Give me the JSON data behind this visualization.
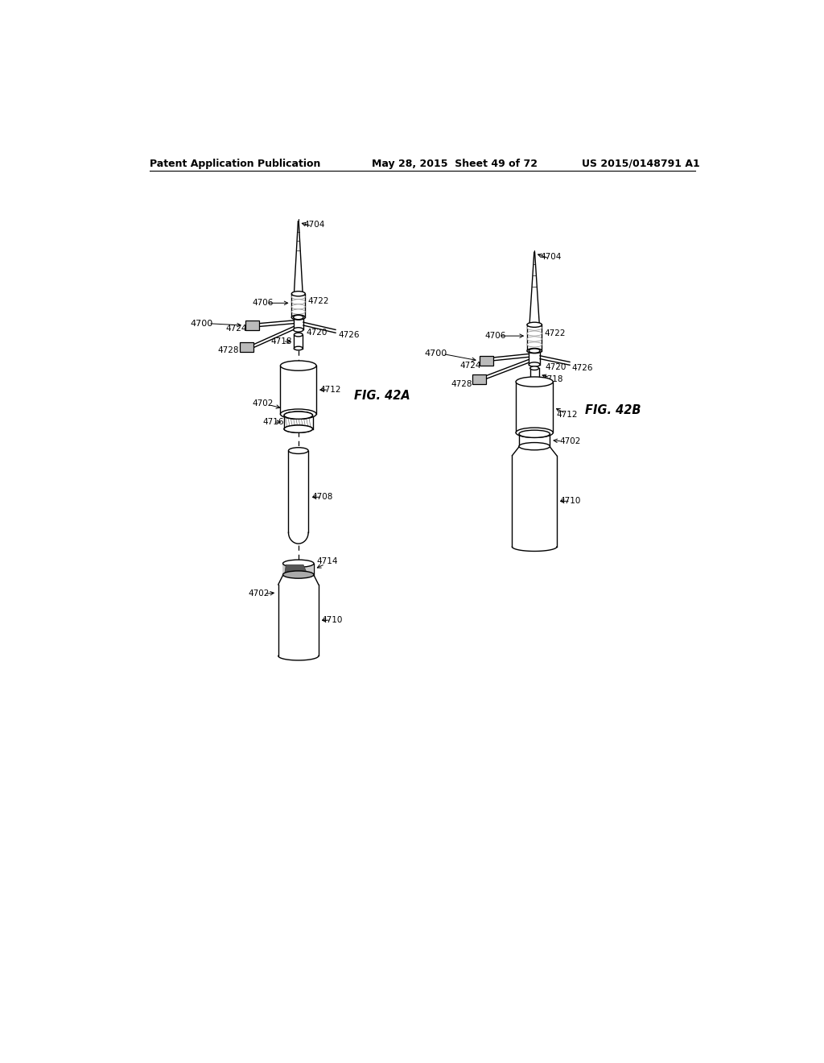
{
  "bg_color": "#ffffff",
  "header_left": "Patent Application Publication",
  "header_mid": "May 28, 2015  Sheet 49 of 72",
  "header_right": "US 2015/0148791 A1",
  "fig_label_A": "FIG. 42A",
  "fig_label_B": "FIG. 42B"
}
